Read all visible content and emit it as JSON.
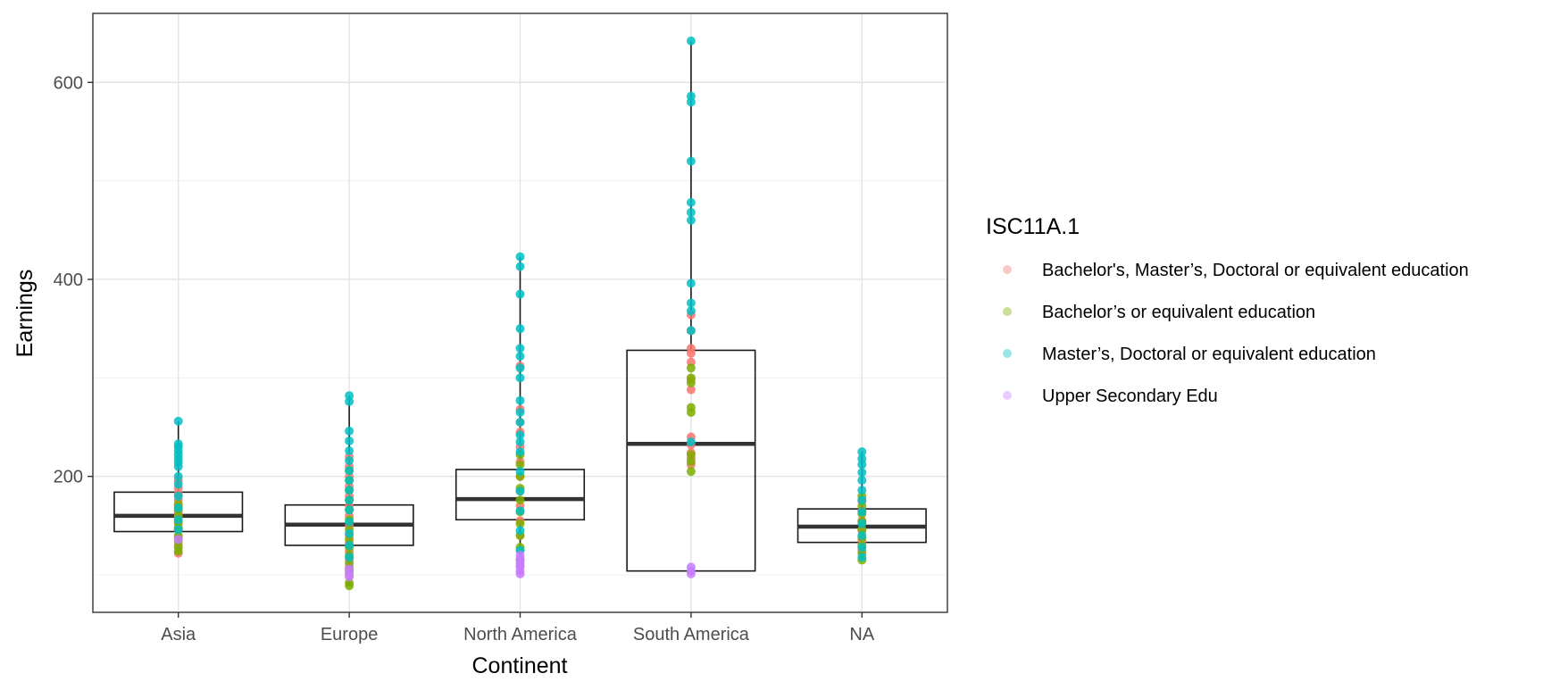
{
  "chart_data": {
    "type": "boxplot",
    "xlabel": "Continent",
    "ylabel": "Earnings",
    "categories": [
      "Asia",
      "Europe",
      "North America",
      "South America",
      "NA"
    ],
    "ylim": [
      62,
      670
    ],
    "y_ticks": [
      200,
      400,
      600
    ],
    "grid": true,
    "legend": {
      "title": "ISC11A.1",
      "placement": "right",
      "entries": [
        {
          "label": "Bachelor's, Master’s, Doctoral or equivalent education",
          "color": "#F8766D"
        },
        {
          "label": "Bachelor’s or equivalent education",
          "color": "#7CAE00"
        },
        {
          "label": "Master’s, Doctoral or equivalent education",
          "color": "#00BFC4"
        },
        {
          "label": "Upper Secondary Edu",
          "color": "#C77CFF"
        }
      ]
    },
    "boxes": [
      {
        "category": "Asia",
        "q1": 144,
        "median": 160,
        "q3": 184,
        "whisker_low": 122,
        "whisker_high": 256
      },
      {
        "category": "Europe",
        "q1": 130,
        "median": 151,
        "q3": 171,
        "whisker_low": 89,
        "whisker_high": 282
      },
      {
        "category": "North America",
        "q1": 156,
        "median": 177,
        "q3": 207,
        "whisker_low": 101,
        "whisker_high": 423
      },
      {
        "category": "South America",
        "q1": 104,
        "median": 233,
        "q3": 328,
        "whisker_low": 101,
        "whisker_high": 642
      },
      {
        "category": "NA",
        "q1": 133,
        "median": 149,
        "q3": 167,
        "whisker_low": 115,
        "whisker_high": 225
      }
    ],
    "points": [
      {
        "category": "Asia",
        "group": 0,
        "values": [
          122,
          130,
          138,
          146,
          152,
          158,
          164,
          170,
          176,
          182,
          188,
          196
        ]
      },
      {
        "category": "Asia",
        "group": 1,
        "values": [
          124,
          128,
          134,
          140,
          148,
          154,
          160,
          166,
          172
        ]
      },
      {
        "category": "Asia",
        "group": 2,
        "values": [
          146,
          156,
          168,
          180,
          192,
          200,
          210,
          214,
          218,
          222,
          226,
          230,
          233,
          256
        ]
      },
      {
        "category": "Asia",
        "group": 3,
        "values": [
          136
        ]
      },
      {
        "category": "Europe",
        "group": 0,
        "values": [
          100,
          108,
          116,
          124,
          132,
          140,
          150,
          160,
          170,
          180,
          190,
          200,
          210,
          220
        ]
      },
      {
        "category": "Europe",
        "group": 1,
        "values": [
          89,
          92,
          104,
          112,
          120,
          128,
          136,
          146,
          156,
          166,
          176,
          186,
          196,
          206
        ]
      },
      {
        "category": "Europe",
        "group": 2,
        "values": [
          118,
          130,
          142,
          154,
          166,
          176,
          186,
          196,
          206,
          216,
          226,
          236,
          246,
          276,
          282
        ]
      },
      {
        "category": "Europe",
        "group": 3,
        "values": [
          98,
          102,
          106
        ]
      },
      {
        "category": "North America",
        "group": 0,
        "values": [
          110,
          125,
          140,
          155,
          170,
          185,
          200,
          215,
          230,
          245,
          255,
          268,
          312
        ]
      },
      {
        "category": "North America",
        "group": 1,
        "values": [
          115,
          128,
          140,
          152,
          164,
          176,
          188,
          200,
          212,
          222
        ]
      },
      {
        "category": "North America",
        "group": 2,
        "values": [
          125,
          145,
          165,
          185,
          205,
          225,
          235,
          242,
          255,
          265,
          277,
          300,
          310,
          322,
          330,
          350,
          385,
          413,
          423
        ]
      },
      {
        "category": "North America",
        "group": 3,
        "values": [
          101,
          104,
          108,
          112,
          116,
          120
        ]
      },
      {
        "category": "South America",
        "group": 0,
        "values": [
          212,
          218,
          224,
          232,
          240,
          288,
          298,
          316,
          325,
          330,
          348,
          364
        ]
      },
      {
        "category": "South America",
        "group": 1,
        "values": [
          205,
          215,
          222,
          265,
          270,
          295,
          300,
          310
        ]
      },
      {
        "category": "South America",
        "group": 2,
        "values": [
          235,
          348,
          368,
          376,
          396,
          460,
          468,
          478,
          520,
          580,
          586,
          642
        ]
      },
      {
        "category": "South America",
        "group": 3,
        "values": [
          101,
          104,
          108
        ]
      },
      {
        "category": "NA",
        "group": 0,
        "values": [
          125,
          135,
          145,
          155,
          165,
          175
        ]
      },
      {
        "category": "NA",
        "group": 1,
        "values": [
          115,
          122,
          130,
          138,
          146,
          154,
          162,
          170,
          180
        ]
      },
      {
        "category": "NA",
        "group": 2,
        "values": [
          118,
          128,
          140,
          152,
          164,
          176,
          186,
          196,
          204,
          212,
          218,
          225
        ]
      }
    ]
  }
}
